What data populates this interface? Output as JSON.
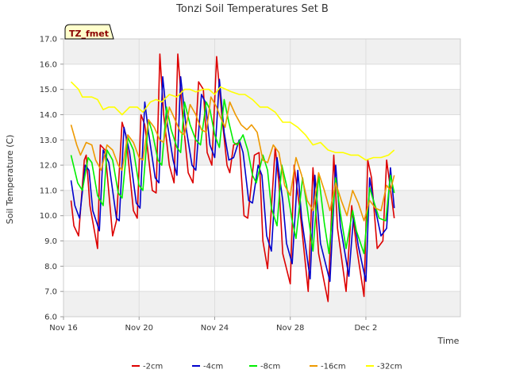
{
  "chart_data": {
    "type": "line",
    "title": "Tonzi Soil Temperatures Set B",
    "xlabel": "Time",
    "ylabel": "Soil Temperature (C)",
    "badge": "TZ_fmet",
    "ylim": [
      6.0,
      17.0
    ],
    "xlim": [
      0,
      21.0
    ],
    "x_unit": "days since Nov 16",
    "yticks": [
      6.0,
      7.0,
      8.0,
      9.0,
      10.0,
      11.0,
      12.0,
      13.0,
      14.0,
      15.0,
      16.0,
      17.0
    ],
    "xticks": [
      {
        "label": "Nov 16",
        "value": 0
      },
      {
        "label": "Nov 20",
        "value": 4
      },
      {
        "label": "Nov 24",
        "value": 8
      },
      {
        "label": "Nov 28",
        "value": 12
      },
      {
        "label": "Dec 2",
        "value": 16
      }
    ],
    "grid": true,
    "legend_position": "bottom",
    "series": [
      {
        "name": "-2cm",
        "color": "#dd0000",
        "x": [
          0.4,
          0.55,
          0.8,
          1.1,
          1.2,
          1.4,
          1.8,
          1.95,
          2.2,
          2.6,
          2.8,
          3.1,
          3.3,
          3.7,
          3.9,
          4.1,
          4.3,
          4.7,
          4.9,
          5.1,
          5.3,
          5.6,
          5.85,
          6.05,
          6.3,
          6.6,
          6.85,
          7.15,
          7.4,
          7.6,
          7.85,
          8.1,
          8.4,
          8.65,
          8.8,
          9.0,
          9.3,
          9.55,
          9.75,
          10.1,
          10.35,
          10.55,
          10.8,
          11.2,
          11.4,
          11.6,
          12.0,
          12.2,
          12.5,
          12.95,
          13.2,
          13.5,
          14.0,
          14.3,
          14.5,
          14.95,
          15.25,
          15.5,
          15.9,
          16.1,
          16.3,
          16.6,
          16.9,
          17.1,
          17.5
        ],
        "y": [
          10.6,
          9.6,
          9.2,
          12.2,
          12.4,
          10.4,
          8.7,
          12.8,
          12.6,
          9.2,
          9.8,
          13.7,
          13.2,
          10.2,
          9.9,
          14.0,
          13.6,
          11.0,
          10.9,
          16.4,
          14.0,
          12.0,
          11.3,
          16.4,
          14.0,
          11.7,
          11.3,
          15.3,
          15.0,
          12.5,
          12.0,
          16.3,
          13.8,
          12.0,
          11.7,
          12.8,
          12.9,
          10.0,
          9.9,
          12.4,
          12.5,
          9.0,
          7.9,
          12.7,
          11.3,
          8.5,
          7.3,
          12.0,
          10.3,
          7.0,
          11.9,
          8.5,
          6.6,
          12.4,
          9.5,
          7.0,
          10.4,
          8.8,
          6.8,
          12.2,
          11.5,
          8.7,
          9.0,
          12.2,
          9.9
        ]
      },
      {
        "name": "-4cm",
        "color": "#0000cc",
        "x": [
          0.4,
          0.6,
          0.85,
          1.15,
          1.35,
          1.55,
          1.9,
          2.1,
          2.4,
          2.8,
          2.95,
          3.2,
          3.5,
          3.85,
          4.05,
          4.3,
          4.5,
          4.85,
          5.05,
          5.25,
          5.5,
          5.8,
          6.0,
          6.2,
          6.5,
          6.8,
          7.0,
          7.3,
          7.5,
          7.75,
          8.0,
          8.25,
          8.5,
          8.75,
          9.0,
          9.3,
          9.5,
          9.8,
          10.0,
          10.3,
          10.5,
          10.75,
          11.0,
          11.3,
          11.6,
          11.8,
          12.1,
          12.4,
          12.6,
          13.05,
          13.3,
          13.6,
          14.1,
          14.4,
          14.65,
          15.1,
          15.35,
          15.6,
          16.0,
          16.2,
          16.4,
          16.8,
          17.1,
          17.3,
          17.5
        ],
        "y": [
          11.4,
          10.4,
          9.9,
          12.0,
          11.8,
          10.2,
          9.4,
          12.6,
          12.1,
          9.9,
          9.8,
          13.5,
          12.5,
          10.5,
          10.3,
          14.5,
          13.3,
          11.5,
          11.3,
          15.5,
          13.6,
          12.2,
          11.6,
          15.5,
          13.4,
          12.0,
          11.8,
          14.8,
          14.5,
          12.8,
          12.3,
          15.4,
          13.3,
          12.2,
          12.3,
          13.0,
          12.5,
          10.6,
          10.5,
          12.0,
          11.6,
          9.2,
          8.6,
          12.3,
          10.6,
          8.9,
          8.1,
          11.8,
          9.9,
          7.5,
          11.6,
          8.9,
          7.4,
          12.0,
          9.6,
          7.6,
          10.0,
          8.8,
          7.4,
          11.5,
          10.6,
          9.2,
          9.5,
          11.9,
          10.3
        ]
      },
      {
        "name": "-8cm",
        "color": "#00ee00",
        "x": [
          0.4,
          0.75,
          1.0,
          1.3,
          1.5,
          1.8,
          2.1,
          2.3,
          2.6,
          2.9,
          3.1,
          3.4,
          3.7,
          4.0,
          4.2,
          4.5,
          4.7,
          5.0,
          5.2,
          5.45,
          5.7,
          6.0,
          6.2,
          6.4,
          6.7,
          7.0,
          7.25,
          7.55,
          7.75,
          8.0,
          8.25,
          8.5,
          8.75,
          9.0,
          9.2,
          9.5,
          9.75,
          10.0,
          10.2,
          10.55,
          10.8,
          11.0,
          11.3,
          11.55,
          11.8,
          12.1,
          12.3,
          12.65,
          12.9,
          13.2,
          13.5,
          13.8,
          14.05,
          14.4,
          14.65,
          14.95,
          15.3,
          15.5,
          15.9,
          16.2,
          16.4,
          16.7,
          17.05,
          17.3,
          17.5
        ],
        "y": [
          12.4,
          11.3,
          11.0,
          12.3,
          12.1,
          10.8,
          10.4,
          12.6,
          12.2,
          10.9,
          10.7,
          13.1,
          12.6,
          11.2,
          11.0,
          13.8,
          13.3,
          12.2,
          12.0,
          14.3,
          13.4,
          12.7,
          12.5,
          14.5,
          13.6,
          13.0,
          12.8,
          14.5,
          14.2,
          13.2,
          12.7,
          14.6,
          13.7,
          12.9,
          12.8,
          13.2,
          12.6,
          11.6,
          11.3,
          12.4,
          11.8,
          10.3,
          9.6,
          12.0,
          11.2,
          9.8,
          9.1,
          11.5,
          10.3,
          8.6,
          11.6,
          9.7,
          8.5,
          11.5,
          10.1,
          8.7,
          10.2,
          9.4,
          8.5,
          11.1,
          10.6,
          9.9,
          9.8,
          11.6,
          10.9
        ]
      },
      {
        "name": "-16cm",
        "color": "#ee9900",
        "x": [
          0.4,
          0.7,
          0.9,
          1.2,
          1.5,
          1.7,
          2.0,
          2.3,
          2.6,
          2.9,
          3.1,
          3.4,
          3.7,
          4.0,
          4.2,
          4.5,
          4.8,
          5.1,
          5.3,
          5.6,
          5.9,
          6.2,
          6.4,
          6.7,
          7.0,
          7.3,
          7.55,
          7.8,
          8.1,
          8.3,
          8.55,
          8.8,
          9.1,
          9.4,
          9.7,
          9.95,
          10.25,
          10.55,
          10.8,
          11.1,
          11.4,
          11.7,
          12.0,
          12.3,
          12.6,
          12.9,
          13.2,
          13.5,
          13.8,
          14.1,
          14.4,
          14.7,
          15.0,
          15.3,
          15.6,
          15.9,
          16.2,
          16.5,
          16.8,
          17.1,
          17.3,
          17.5
        ],
        "y": [
          13.6,
          12.8,
          12.4,
          12.9,
          12.8,
          12.2,
          11.8,
          12.8,
          12.6,
          12.0,
          11.8,
          13.2,
          12.9,
          12.3,
          12.2,
          13.8,
          13.5,
          13.0,
          12.9,
          14.3,
          13.8,
          13.3,
          13.2,
          14.4,
          14.0,
          13.4,
          13.3,
          14.7,
          14.3,
          13.9,
          13.5,
          14.5,
          14.0,
          13.6,
          13.4,
          13.6,
          13.3,
          12.2,
          12.1,
          12.8,
          12.5,
          11.2,
          10.8,
          12.3,
          11.6,
          10.6,
          10.2,
          11.7,
          11.0,
          10.2,
          11.3,
          10.6,
          10.0,
          11.0,
          10.5,
          9.8,
          10.6,
          10.3,
          10.2,
          11.2,
          11.0,
          11.6
        ]
      },
      {
        "name": "-32cm",
        "color": "#ffff00",
        "x": [
          0.4,
          0.8,
          1.0,
          1.5,
          1.8,
          2.1,
          2.4,
          2.7,
          3.1,
          3.5,
          3.9,
          4.2,
          4.6,
          4.9,
          5.2,
          5.6,
          6.0,
          6.4,
          6.7,
          7.0,
          7.4,
          7.7,
          8.0,
          8.3,
          8.6,
          8.9,
          9.3,
          9.6,
          10.0,
          10.4,
          10.8,
          11.2,
          11.6,
          12.0,
          12.4,
          12.8,
          13.2,
          13.6,
          14.0,
          14.4,
          14.8,
          15.2,
          15.6,
          16.0,
          16.4,
          16.8,
          17.2,
          17.5
        ],
        "y": [
          15.3,
          15.0,
          14.7,
          14.7,
          14.6,
          14.2,
          14.3,
          14.3,
          14.0,
          14.3,
          14.3,
          14.1,
          14.5,
          14.6,
          14.5,
          14.8,
          14.7,
          15.0,
          15.0,
          14.9,
          15.0,
          15.0,
          14.8,
          15.1,
          15.0,
          14.9,
          14.8,
          14.8,
          14.6,
          14.3,
          14.3,
          14.1,
          13.7,
          13.7,
          13.5,
          13.2,
          12.8,
          12.9,
          12.6,
          12.5,
          12.5,
          12.4,
          12.4,
          12.2,
          12.3,
          12.3,
          12.4,
          12.6
        ]
      }
    ]
  }
}
